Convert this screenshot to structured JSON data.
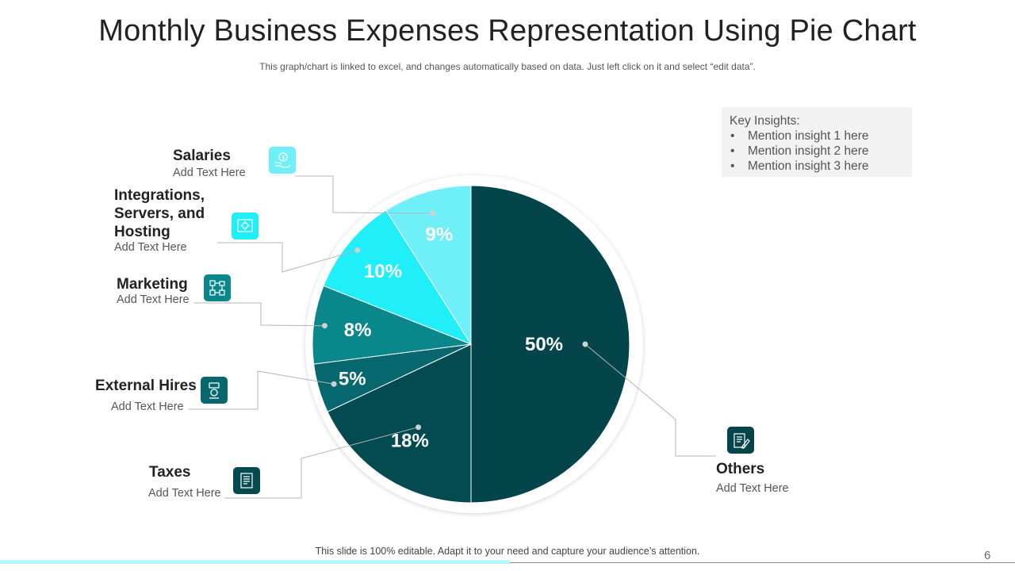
{
  "title": "Monthly Business Expenses Representation Using Pie Chart",
  "subtitle": "This graph/chart is linked to excel, and changes automatically based on data. Just left click on it and select “edit data”.",
  "insights": {
    "heading": "Key Insights:",
    "items": [
      "Mention insight 1 here",
      "Mention insight 2  here",
      "Mention insight 3 here"
    ]
  },
  "labels": {
    "salaries": {
      "title": "Salaries",
      "text": "Add Text Here",
      "icon": "money-hand-icon"
    },
    "integrations": {
      "title": "Integrations, Servers, and Hosting",
      "text": "Add Text Here",
      "icon": "server-gear-icon"
    },
    "marketing": {
      "title": "Marketing",
      "text": "Add Text Here",
      "icon": "network-icon"
    },
    "external": {
      "title": "External Hires",
      "text": "Add Text Here",
      "icon": "hiring-icon"
    },
    "taxes": {
      "title": "Taxes",
      "text": "Add Text Here",
      "icon": "tax-document-icon"
    },
    "others": {
      "title": "Others",
      "text": "Add Text Here",
      "icon": "document-pen-icon"
    }
  },
  "footer": "This slide is 100% editable. Adapt it to your need and capture your audience’s attention.",
  "page_number": "6",
  "chart_data": {
    "type": "pie",
    "title": "Monthly Business Expenses Representation Using Pie Chart",
    "slices": [
      {
        "name": "Others",
        "value": 50,
        "label": "50%",
        "color": "#03454b"
      },
      {
        "name": "Taxes",
        "value": 18,
        "label": "18%",
        "color": "#034b50"
      },
      {
        "name": "External Hires",
        "value": 5,
        "label": "5%",
        "color": "#06686e"
      },
      {
        "name": "Marketing",
        "value": 8,
        "label": "8%",
        "color": "#0a878b"
      },
      {
        "name": "Integrations, Servers, and Hosting",
        "value": 10,
        "label": "10%",
        "color": "#20eef8"
      },
      {
        "name": "Salaries",
        "value": 9,
        "label": "9%",
        "color": "#6ff0f8"
      }
    ],
    "start_angle_deg": 0,
    "direction": "clockwise"
  }
}
